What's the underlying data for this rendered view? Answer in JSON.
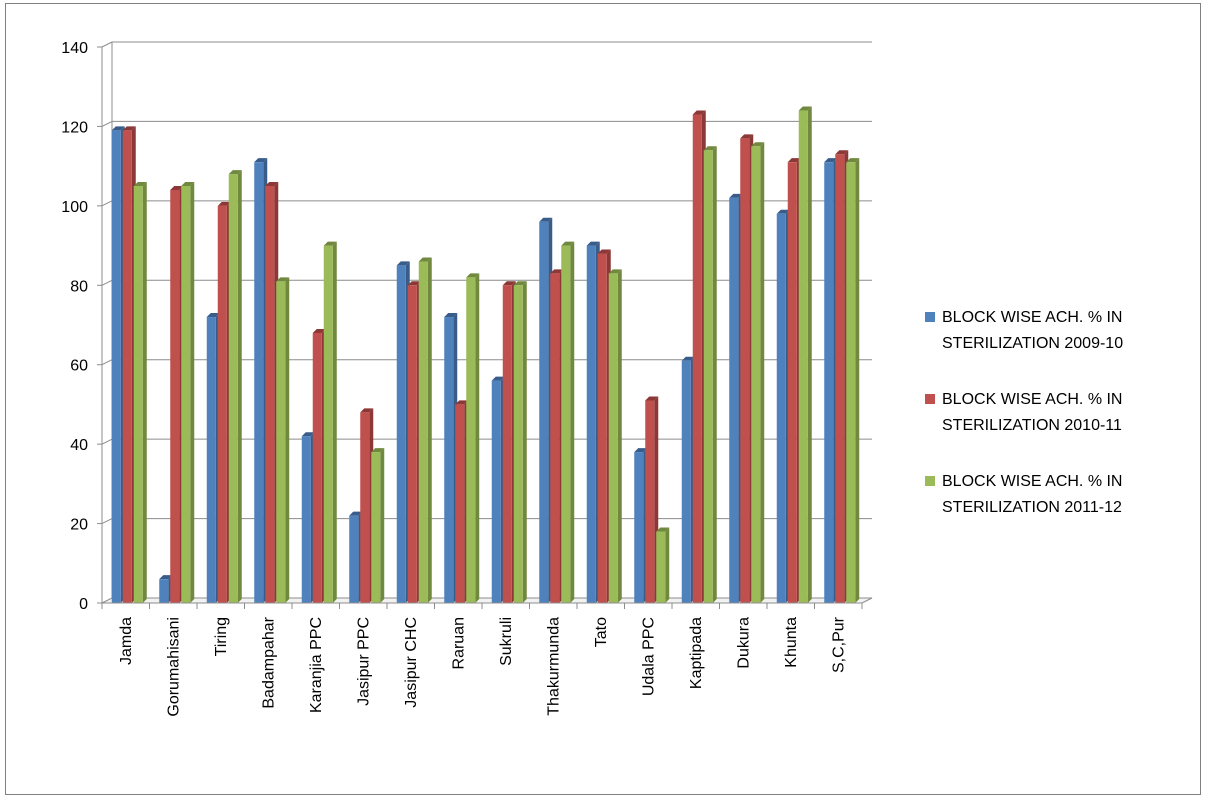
{
  "chart_data": {
    "type": "bar",
    "categories": [
      "Jamda",
      "Gorumahisani",
      "Tiring",
      "Badampahar",
      "Karanjia PPC",
      "Jasipur PPC",
      "Jasipur CHC",
      "Raruan",
      "Sukruli",
      "Thakurmunda",
      "Tato",
      "Udala PPC",
      "Kaptipada",
      "Dukura",
      "Khunta",
      "S,C,Pur"
    ],
    "series": [
      {
        "name": "BLOCK WISE ACH. % IN STERILIZATION 2009-10",
        "name_lines": [
          "BLOCK WISE ACH. % IN",
          "STERILIZATION 2009-10"
        ],
        "color": "#4F81BD",
        "side": "#385D8A",
        "values": [
          119,
          6,
          72,
          111,
          42,
          22,
          85,
          72,
          56,
          96,
          90,
          38,
          61,
          102,
          98,
          111
        ]
      },
      {
        "name": "BLOCK WISE ACH. % IN STERILIZATION 2010-11",
        "name_lines": [
          "BLOCK WISE ACH. % IN",
          "STERILIZATION 2010-11"
        ],
        "color": "#C0504D",
        "side": "#8C3836",
        "values": [
          119,
          104,
          100,
          105,
          68,
          48,
          80,
          50,
          80,
          83,
          88,
          51,
          123,
          117,
          111,
          113
        ]
      },
      {
        "name": "BLOCK WISE ACH. % IN STERILIZATION 2011-12",
        "name_lines": [
          "BLOCK WISE ACH. % IN",
          "STERILIZATION 2011-12"
        ],
        "color": "#9BBB59",
        "side": "#71893F",
        "values": [
          105,
          105,
          108,
          81,
          90,
          38,
          86,
          82,
          80,
          90,
          83,
          18,
          114,
          115,
          124,
          111
        ]
      }
    ],
    "ylim": [
      0,
      140
    ],
    "yticks": [
      "0",
      "20",
      "40",
      "60",
      "80",
      "100",
      "120",
      "140"
    ],
    "grid": true,
    "legend_position": "right",
    "xlabel": "",
    "ylabel": ""
  }
}
